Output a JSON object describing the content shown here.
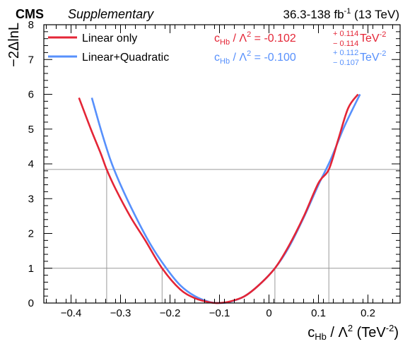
{
  "chart_data": {
    "type": "line",
    "header_left_bold": "CMS",
    "header_left_italic": "Supplementary",
    "header_right": {
      "lumi": "36.3-138 fb",
      "lumi_sup": "-1",
      "energy": "(13 TeV)"
    },
    "ylabel": "−2ΔlnL",
    "xlabel": {
      "sym": "c",
      "sub": "Hb",
      "rest": " / Λ",
      "sup": "2",
      "unit_pre": " (TeV",
      "unit_sup": "-2",
      "unit_post": ")"
    },
    "xlim": [
      -0.455,
      0.265
    ],
    "ylim": [
      0,
      8
    ],
    "x_ticks": [
      -0.4,
      -0.3,
      -0.2,
      -0.1,
      0,
      0.1,
      0.2
    ],
    "x_tick_labels": [
      "−0.4",
      "−0.3",
      "−0.2",
      "−0.1",
      "0",
      "0.1",
      "0.2"
    ],
    "y_ticks": [
      0,
      1,
      2,
      3,
      4,
      5,
      6,
      7,
      8
    ],
    "y_tick_labels": [
      "0",
      "1",
      "2",
      "3",
      "4",
      "5",
      "6",
      "7",
      "8"
    ],
    "threshold_lines": [
      1,
      3.84
    ],
    "interval_markers": [
      {
        "x": -0.328,
        "y": 3.84
      },
      {
        "x": -0.216,
        "y": 1
      },
      {
        "x": 0.012,
        "y": 1
      },
      {
        "x": 0.121,
        "y": 3.84
      }
    ],
    "series": [
      {
        "name": "Linear only",
        "color": "#e42536",
        "result": {
          "label_sym": "c",
          "label_sub": "Hb",
          "label_mid": " / Λ",
          "label_sup": "2",
          "label_eq": " = -0.102",
          "plus": "+ 0.114",
          "minus": "− 0.114",
          "unit": " TeV",
          "unit_sup": "-2"
        },
        "x": [
          -0.384,
          -0.36,
          -0.34,
          -0.328,
          -0.31,
          -0.28,
          -0.25,
          -0.216,
          -0.18,
          -0.15,
          -0.12,
          -0.102,
          -0.08,
          -0.05,
          -0.02,
          0.012,
          0.04,
          0.07,
          0.1,
          0.121,
          0.14,
          0.16,
          0.18
        ],
        "y": [
          5.9,
          5.0,
          4.3,
          3.84,
          3.28,
          2.48,
          1.8,
          1.0,
          0.4,
          0.14,
          0.02,
          0.0,
          0.04,
          0.19,
          0.52,
          1.0,
          1.64,
          2.48,
          3.45,
          3.84,
          4.7,
          5.6,
          6.0
        ]
      },
      {
        "name": "Linear+Quadratic",
        "color": "#5790fc",
        "result": {
          "label_sym": "c",
          "label_sub": "Hb",
          "label_mid": " / Λ",
          "label_sup": "2",
          "label_eq": " = -0.100",
          "plus": "+ 0.112",
          "minus": "− 0.107",
          "unit": " TeV",
          "unit_sup": "-2"
        },
        "x": [
          -0.358,
          -0.34,
          -0.32,
          -0.3,
          -0.27,
          -0.24,
          -0.21,
          -0.18,
          -0.15,
          -0.12,
          -0.1,
          -0.08,
          -0.05,
          -0.02,
          0.012,
          0.04,
          0.07,
          0.1,
          0.124,
          0.15,
          0.17,
          0.184
        ],
        "y": [
          5.9,
          5.0,
          4.1,
          3.4,
          2.5,
          1.7,
          1.05,
          0.52,
          0.2,
          0.03,
          0.0,
          0.03,
          0.19,
          0.52,
          1.0,
          1.6,
          2.45,
          3.4,
          4.1,
          5.0,
          5.6,
          6.0
        ]
      }
    ]
  }
}
